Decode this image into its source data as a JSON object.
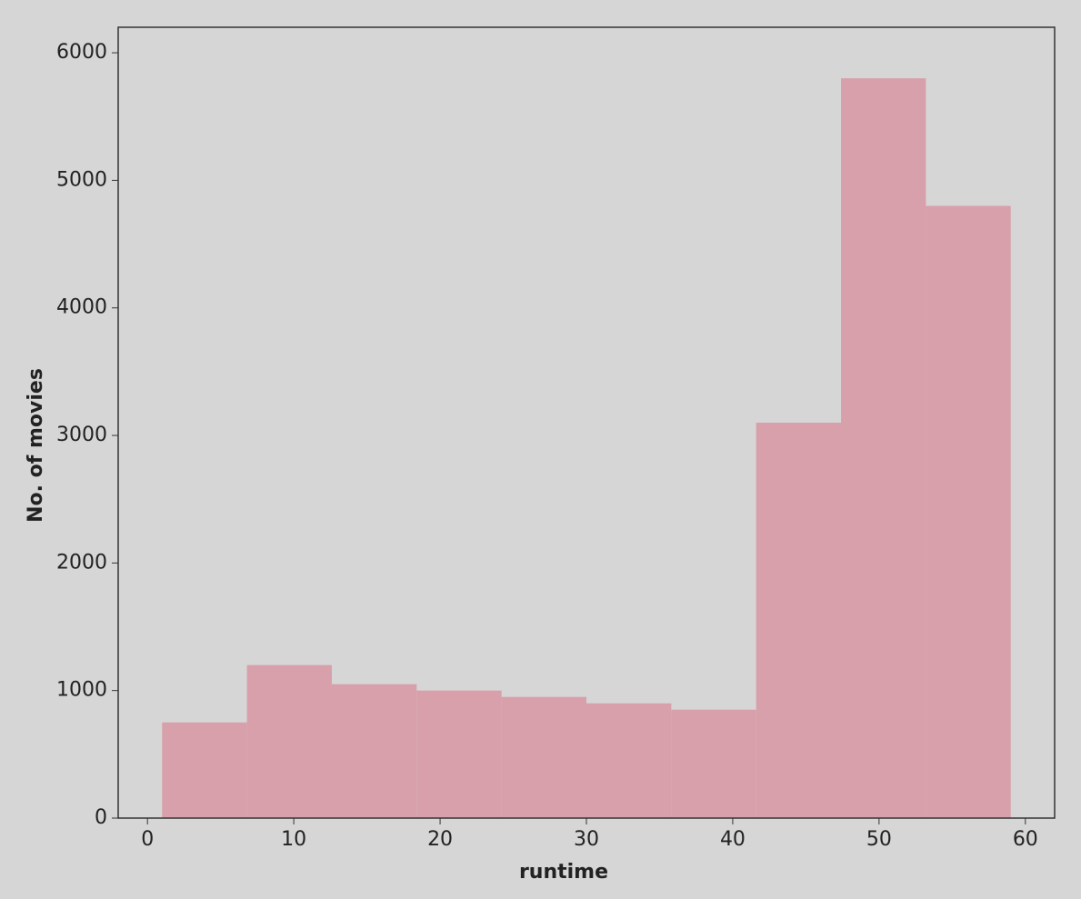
{
  "chart_data": {
    "type": "histogram",
    "x_label": "runtime",
    "y_label": "No. of movies",
    "bins": [
      1,
      6.8,
      12.6,
      18.4,
      24.2,
      30,
      35.8,
      41.6,
      47.4,
      53.2,
      59
    ],
    "values": [
      750,
      1200,
      1050,
      1000,
      950,
      900,
      850,
      3100,
      5800,
      4800
    ],
    "color": "#d8a0aa",
    "xlim": [
      -2,
      62
    ],
    "xticks": [
      0,
      10,
      20,
      30,
      40,
      50,
      60
    ],
    "ylim": [
      0,
      6200
    ],
    "yticks": [
      0,
      1000,
      2000,
      3000,
      4000,
      5000,
      6000
    ]
  }
}
